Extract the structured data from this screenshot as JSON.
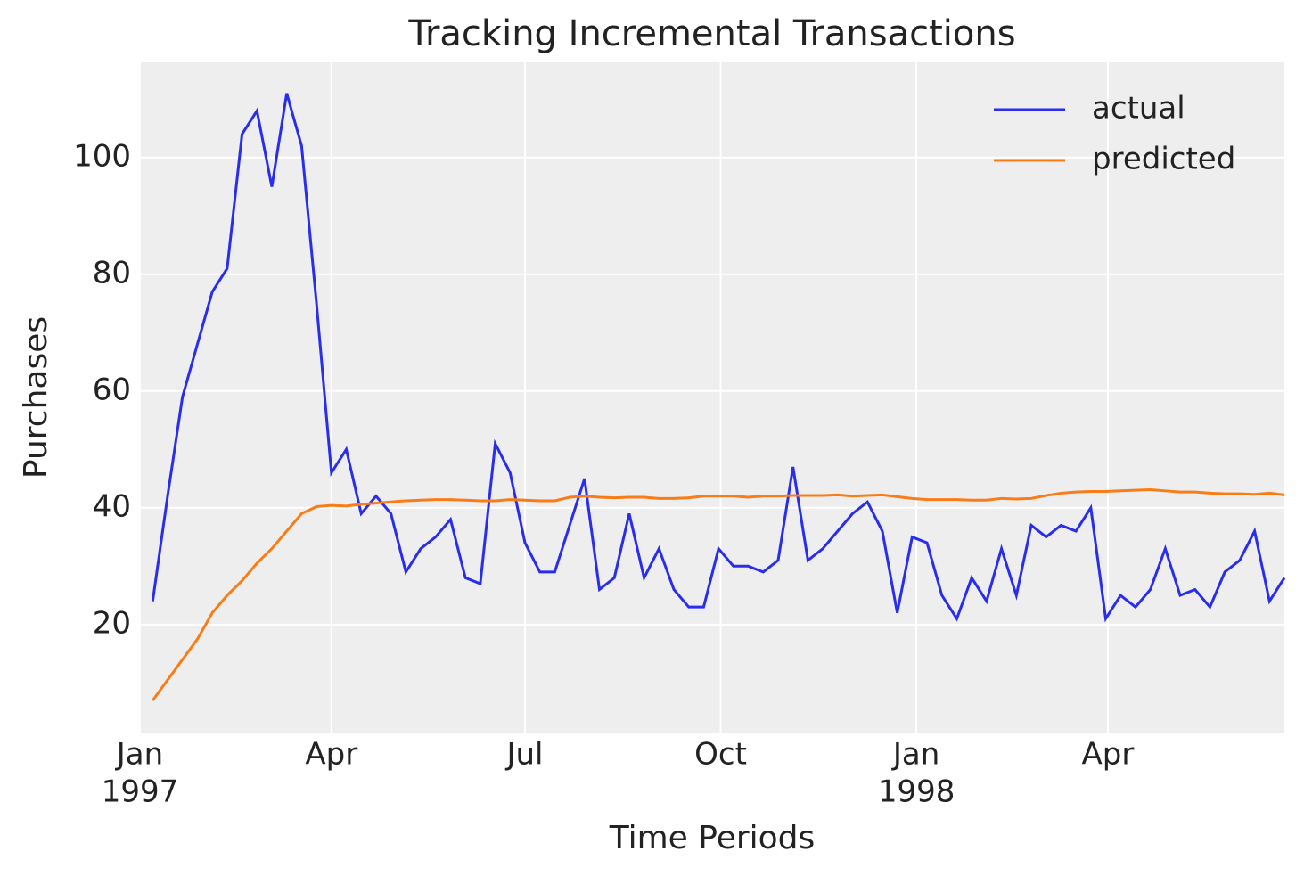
{
  "chart_data": {
    "type": "line",
    "title": "Tracking Incremental Transactions",
    "xlabel": "Time Periods",
    "ylabel": "Purchases",
    "x": [
      "1997-01-07",
      "1997-01-14",
      "1997-01-21",
      "1997-01-28",
      "1997-02-04",
      "1997-02-11",
      "1997-02-18",
      "1997-02-25",
      "1997-03-04",
      "1997-03-11",
      "1997-03-18",
      "1997-03-25",
      "1997-04-01",
      "1997-04-08",
      "1997-04-15",
      "1997-04-22",
      "1997-04-29",
      "1997-05-06",
      "1997-05-13",
      "1997-05-20",
      "1997-05-27",
      "1997-06-03",
      "1997-06-10",
      "1997-06-17",
      "1997-06-24",
      "1997-07-01",
      "1997-07-08",
      "1997-07-15",
      "1997-07-22",
      "1997-07-29",
      "1997-08-05",
      "1997-08-12",
      "1997-08-19",
      "1997-08-26",
      "1997-09-02",
      "1997-09-09",
      "1997-09-16",
      "1997-09-23",
      "1997-09-30",
      "1997-10-07",
      "1997-10-14",
      "1997-10-21",
      "1997-10-28",
      "1997-11-04",
      "1997-11-11",
      "1997-11-18",
      "1997-11-25",
      "1997-12-02",
      "1997-12-09",
      "1997-12-16",
      "1997-12-23",
      "1997-12-30",
      "1998-01-06",
      "1998-01-13",
      "1998-01-20",
      "1998-01-27",
      "1998-02-03",
      "1998-02-10",
      "1998-02-17",
      "1998-02-24",
      "1998-03-03",
      "1998-03-10",
      "1998-03-17",
      "1998-03-24",
      "1998-03-31",
      "1998-04-07",
      "1998-04-14",
      "1998-04-21",
      "1998-04-28",
      "1998-05-05",
      "1998-05-12",
      "1998-05-19",
      "1998-05-26",
      "1998-06-02",
      "1998-06-09",
      "1998-06-16",
      "1998-06-23"
    ],
    "series": [
      {
        "name": "actual",
        "color": "#2a2eec",
        "values": [
          24,
          42,
          59,
          68,
          77,
          81,
          104,
          108,
          95,
          111,
          102,
          75,
          46,
          50,
          39,
          42,
          39,
          29,
          33,
          35,
          38,
          28,
          27,
          51,
          46,
          34,
          29,
          29,
          37,
          45,
          26,
          28,
          39,
          28,
          33,
          26,
          23,
          23,
          33,
          30,
          30,
          29,
          31,
          47,
          31,
          33,
          36,
          39,
          41,
          36,
          22,
          35,
          34,
          25,
          21,
          28,
          24,
          33,
          25,
          37,
          35,
          37,
          36,
          40,
          21,
          25,
          23,
          26,
          33,
          25,
          26,
          23,
          29,
          31,
          36,
          24,
          28
        ]
      },
      {
        "name": "predicted",
        "color": "#fa7c17",
        "values": [
          7,
          10.5,
          14,
          17.5,
          22,
          25,
          27.5,
          30.5,
          33,
          36,
          39,
          40.2,
          40.4,
          40.3,
          40.6,
          40.8,
          41,
          41.2,
          41.3,
          41.4,
          41.4,
          41.3,
          41.2,
          41.2,
          41.4,
          41.3,
          41.2,
          41.2,
          41.8,
          42,
          41.8,
          41.7,
          41.8,
          41.8,
          41.6,
          41.6,
          41.7,
          42,
          42,
          42,
          41.8,
          42,
          42,
          42.1,
          42.1,
          42.1,
          42.2,
          42,
          42.1,
          42.2,
          41.9,
          41.6,
          41.4,
          41.4,
          41.4,
          41.3,
          41.3,
          41.6,
          41.5,
          41.6,
          42.1,
          42.5,
          42.7,
          42.8,
          42.8,
          42.9,
          43,
          43.1,
          42.9,
          42.7,
          42.7,
          42.5,
          42.4,
          42.4,
          42.3,
          42.5,
          42.2
        ]
      }
    ],
    "xlim": [
      "1997-01-01",
      "1998-06-23"
    ],
    "xticks": [
      {
        "value": "1997-01-01",
        "label": "Jan",
        "sublabel": "1997"
      },
      {
        "value": "1997-04-01",
        "label": "Apr"
      },
      {
        "value": "1997-07-01",
        "label": "Jul"
      },
      {
        "value": "1997-10-01",
        "label": "Oct"
      },
      {
        "value": "1998-01-01",
        "label": "Jan",
        "sublabel": "1998"
      },
      {
        "value": "1998-04-01",
        "label": "Apr"
      }
    ],
    "ylim": [
      1.5,
      116.3
    ],
    "yticks": [
      20,
      40,
      60,
      80,
      100
    ],
    "grid": true,
    "legend": "upper right"
  }
}
